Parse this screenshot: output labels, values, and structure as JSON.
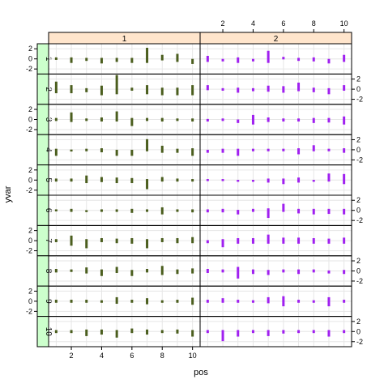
{
  "chart_data": {
    "type": "bar",
    "xlabel": "pos",
    "ylabel": "yvar",
    "x": [
      1,
      2,
      3,
      4,
      5,
      6,
      7,
      8,
      9,
      10
    ],
    "xticks": [
      "2",
      "4",
      "6",
      "8",
      "10"
    ],
    "ylim": [
      -3,
      3
    ],
    "yticks": [
      "-2",
      "0",
      "2"
    ],
    "grid": true,
    "column_strip_color": "#ffe5cc",
    "row_strip_color": "#ccffcc",
    "columns": [
      {
        "label": "1",
        "color": "#4b5e1e"
      },
      {
        "label": "2",
        "color": "#a020f0"
      }
    ],
    "rows": [
      {
        "label": "1",
        "series": [
          [
            [
              -0.2,
              0.3
            ],
            [
              -0.8,
              0.3
            ],
            [
              -0.4,
              0.2
            ],
            [
              -0.9,
              0.2
            ],
            [
              -0.6,
              0.2
            ],
            [
              -0.8,
              0.2
            ],
            [
              -0.8,
              2.2
            ],
            [
              -0.3,
              0.8
            ],
            [
              -0.6,
              1.0
            ],
            [
              -1.0,
              0.0
            ]
          ],
          [
            [
              -0.6,
              0.6
            ],
            [
              -0.5,
              0.0
            ],
            [
              -0.8,
              0.3
            ],
            [
              -0.5,
              0.0
            ],
            [
              -0.8,
              1.6
            ],
            [
              -0.1,
              0.4
            ],
            [
              -0.4,
              0.2
            ],
            [
              -0.5,
              0.3
            ],
            [
              -0.9,
              0.0
            ],
            [
              -0.6,
              0.8
            ]
          ]
        ]
      },
      {
        "label": "2",
        "series": [
          [
            [
              -0.8,
              1.5
            ],
            [
              -0.8,
              0.8
            ],
            [
              -0.6,
              0.2
            ],
            [
              -1.2,
              0.7
            ],
            [
              -1.0,
              2.8
            ],
            [
              -0.3,
              0.3
            ],
            [
              -1.0,
              0.8
            ],
            [
              -1.2,
              0.3
            ],
            [
              -1.2,
              0.3
            ],
            [
              -1.2,
              0.8
            ]
          ],
          [
            [
              -0.2,
              0.8
            ],
            [
              -0.3,
              0.2
            ],
            [
              -0.7,
              0.3
            ],
            [
              -0.4,
              0.2
            ],
            [
              -0.5,
              0.7
            ],
            [
              -0.7,
              0.6
            ],
            [
              -0.4,
              1.3
            ],
            [
              -0.6,
              0.3
            ],
            [
              -1.0,
              0.2
            ],
            [
              -0.3,
              0.8
            ]
          ]
        ]
      },
      {
        "label": "3",
        "series": [
          [
            [
              -0.3,
              0.3
            ],
            [
              -0.5,
              1.4
            ],
            [
              -0.3,
              0.2
            ],
            [
              -0.4,
              0.4
            ],
            [
              -0.4,
              1.6
            ],
            [
              -1.3,
              0.3
            ],
            [
              -0.3,
              0.3
            ],
            [
              -0.4,
              0.3
            ],
            [
              -0.3,
              0.2
            ],
            [
              -0.4,
              0.2
            ]
          ],
          [
            [
              -0.4,
              0.1
            ],
            [
              -0.3,
              0.2
            ],
            [
              -0.7,
              0.0
            ],
            [
              -1.0,
              0.9
            ],
            [
              -0.5,
              0.4
            ],
            [
              -0.4,
              0.2
            ],
            [
              -0.4,
              0.2
            ],
            [
              -0.7,
              0.3
            ],
            [
              -0.6,
              0.3
            ],
            [
              -1.0,
              0.6
            ]
          ]
        ]
      },
      {
        "label": "4",
        "series": [
          [
            [
              -1.2,
              0.2
            ],
            [
              -0.3,
              0.0
            ],
            [
              -0.3,
              0.2
            ],
            [
              -0.5,
              0.3
            ],
            [
              -1.2,
              0.0
            ],
            [
              -1.2,
              0.0
            ],
            [
              -0.3,
              2.1
            ],
            [
              -0.6,
              0.8
            ],
            [
              -0.6,
              0.2
            ],
            [
              -1.2,
              0.3
            ]
          ],
          [
            [
              -0.6,
              0.0
            ],
            [
              -0.6,
              0.2
            ],
            [
              -1.2,
              0.2
            ],
            [
              -0.3,
              0.2
            ],
            [
              -0.3,
              0.2
            ],
            [
              -0.3,
              0.2
            ],
            [
              -0.9,
              0.3
            ],
            [
              -0.3,
              0.9
            ],
            [
              -0.3,
              0.2
            ],
            [
              -0.6,
              0.3
            ]
          ]
        ]
      },
      {
        "label": "5",
        "series": [
          [
            [
              -0.3,
              0.3
            ],
            [
              -0.3,
              0.3
            ],
            [
              -0.6,
              0.9
            ],
            [
              -0.4,
              0.6
            ],
            [
              -0.6,
              0.5
            ],
            [
              -0.6,
              0.4
            ],
            [
              -1.8,
              0.2
            ],
            [
              -0.3,
              0.6
            ],
            [
              -0.3,
              0.3
            ],
            [
              -0.3,
              0.2
            ]
          ],
          [
            [
              -0.2,
              0.2
            ],
            [
              -0.2,
              0.2
            ],
            [
              -0.3,
              0.0
            ],
            [
              -0.3,
              0.0
            ],
            [
              -0.5,
              0.3
            ],
            [
              -0.8,
              0.3
            ],
            [
              -0.5,
              0.5
            ],
            [
              -0.3,
              0.0
            ],
            [
              -0.3,
              1.3
            ],
            [
              -0.8,
              1.2
            ]
          ]
        ]
      },
      {
        "label": "6",
        "series": [
          [
            [
              -0.2,
              0.2
            ],
            [
              -0.3,
              0.3
            ],
            [
              -0.3,
              0.0
            ],
            [
              -0.3,
              0.2
            ],
            [
              -0.3,
              0.2
            ],
            [
              -0.5,
              0.3
            ],
            [
              -0.3,
              0.2
            ],
            [
              -0.8,
              0.6
            ],
            [
              -0.3,
              0.2
            ],
            [
              -0.4,
              0.2
            ]
          ],
          [
            [
              -0.4,
              0.2
            ],
            [
              -0.4,
              0.3
            ],
            [
              -0.8,
              0.1
            ],
            [
              -0.3,
              0.3
            ],
            [
              -1.5,
              0.4
            ],
            [
              -0.3,
              1.3
            ],
            [
              -0.6,
              0.3
            ],
            [
              -0.8,
              0.3
            ],
            [
              -0.7,
              0.3
            ],
            [
              -0.8,
              0.3
            ]
          ]
        ]
      },
      {
        "label": "7",
        "series": [
          [
            [
              -0.3,
              0.3
            ],
            [
              -1.0,
              1.0
            ],
            [
              -1.5,
              0.3
            ],
            [
              -0.3,
              0.5
            ],
            [
              -0.5,
              0.4
            ],
            [
              -0.6,
              0.5
            ],
            [
              -1.5,
              0.3
            ],
            [
              -0.3,
              0.5
            ],
            [
              -0.5,
              0.5
            ],
            [
              -0.5,
              0.7
            ]
          ],
          [
            [
              -0.5,
              0.1
            ],
            [
              -1.3,
              0.3
            ],
            [
              -0.6,
              0.5
            ],
            [
              -0.6,
              0.5
            ],
            [
              -0.6,
              1.2
            ],
            [
              -0.6,
              0.6
            ],
            [
              -0.6,
              0.6
            ],
            [
              -0.6,
              0.5
            ],
            [
              -0.6,
              0.4
            ],
            [
              -0.6,
              0.6
            ]
          ]
        ]
      },
      {
        "label": "8",
        "series": [
          [
            [
              -0.3,
              0.4
            ],
            [
              -0.2,
              0.3
            ],
            [
              -0.5,
              0.7
            ],
            [
              -1.0,
              0.3
            ],
            [
              -0.4,
              0.8
            ],
            [
              -1.0,
              0.2
            ],
            [
              -0.3,
              0.4
            ],
            [
              -0.8,
              1.0
            ],
            [
              -0.6,
              0.3
            ],
            [
              -0.5,
              0.5
            ]
          ],
          [
            [
              -0.4,
              0.4
            ],
            [
              -0.3,
              0.3
            ],
            [
              -1.5,
              0.8
            ],
            [
              -0.6,
              0.3
            ],
            [
              -0.8,
              0.2
            ],
            [
              -0.3,
              0.3
            ],
            [
              -0.6,
              0.3
            ],
            [
              -0.3,
              0.3
            ],
            [
              -0.5,
              0.1
            ],
            [
              -0.6,
              0.2
            ]
          ]
        ]
      },
      {
        "label": "9",
        "series": [
          [
            [
              -0.3,
              0.3
            ],
            [
              -0.3,
              0.3
            ],
            [
              -0.3,
              0.3
            ],
            [
              -0.3,
              0.2
            ],
            [
              -0.5,
              0.8
            ],
            [
              -0.3,
              0.3
            ],
            [
              -0.6,
              0.6
            ],
            [
              -0.3,
              0.2
            ],
            [
              -0.3,
              0.3
            ],
            [
              -0.7,
              0.7
            ]
          ],
          [
            [
              -0.3,
              0.3
            ],
            [
              -0.3,
              0.6
            ],
            [
              -0.3,
              0.3
            ],
            [
              -0.3,
              0.2
            ],
            [
              -0.4,
              0.8
            ],
            [
              -1.0,
              1.0
            ],
            [
              -0.3,
              0.3
            ],
            [
              -0.3,
              0.2
            ],
            [
              -1.0,
              0.8
            ],
            [
              -0.3,
              0.3
            ]
          ]
        ]
      },
      {
        "label": "10",
        "series": [
          [
            [
              -0.3,
              0.3
            ],
            [
              -0.3,
              0.3
            ],
            [
              -0.9,
              0.4
            ],
            [
              -0.6,
              0.4
            ],
            [
              -1.2,
              0.3
            ],
            [
              -0.3,
              0.6
            ],
            [
              -0.6,
              0.4
            ],
            [
              -0.3,
              0.3
            ],
            [
              -0.4,
              0.4
            ],
            [
              -1.0,
              0.3
            ]
          ],
          [
            [
              -0.3,
              0.3
            ],
            [
              -1.9,
              0.3
            ],
            [
              -1.0,
              0.3
            ],
            [
              -0.3,
              0.3
            ],
            [
              -0.9,
              0.3
            ],
            [
              -0.4,
              0.3
            ],
            [
              -0.3,
              0.3
            ],
            [
              -0.3,
              0.3
            ],
            [
              -1.0,
              0.3
            ],
            [
              -0.3,
              0.3
            ]
          ]
        ]
      }
    ]
  }
}
